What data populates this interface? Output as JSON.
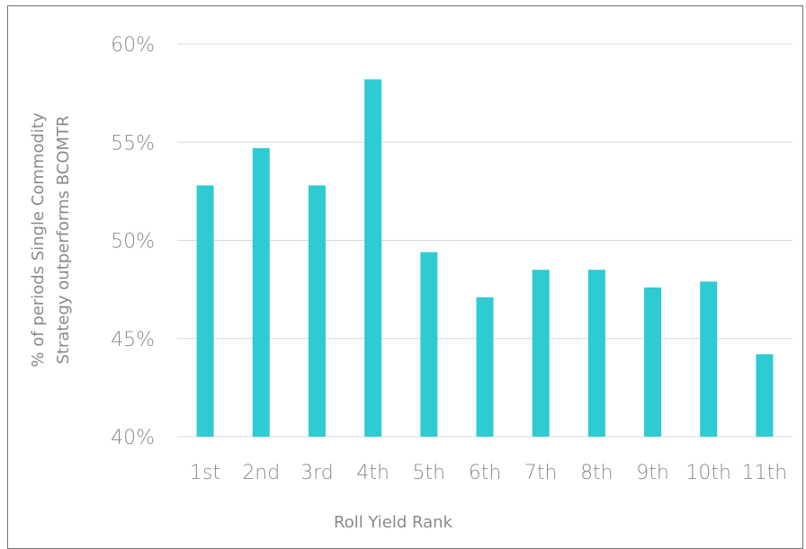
{
  "chart_data": {
    "type": "bar",
    "title": "",
    "xlabel": "Roll Yield Rank",
    "ylabel_lines": [
      "% of periods  Single Commodity",
      "Strategy outperforms BCOMTR"
    ],
    "categories": [
      "1st",
      "2nd",
      "3rd",
      "4th",
      "5th",
      "6th",
      "7th",
      "8th",
      "9th",
      "10th",
      "11th"
    ],
    "series": [
      {
        "values": [
          52.8,
          54.7,
          52.8,
          58.2,
          49.4,
          47.1,
          48.5,
          48.5,
          47.6,
          47.9,
          44.2
        ]
      }
    ],
    "ylim": [
      40,
      60
    ],
    "yticks": [
      40,
      45,
      50,
      55,
      60
    ],
    "ytick_labels": [
      "40%",
      "45%",
      "50%",
      "55%",
      "60%"
    ],
    "grid": true,
    "bar_color": "#2ECBD3",
    "grid_color": "#D9D9D9",
    "text_color": "#8A8A8A"
  }
}
